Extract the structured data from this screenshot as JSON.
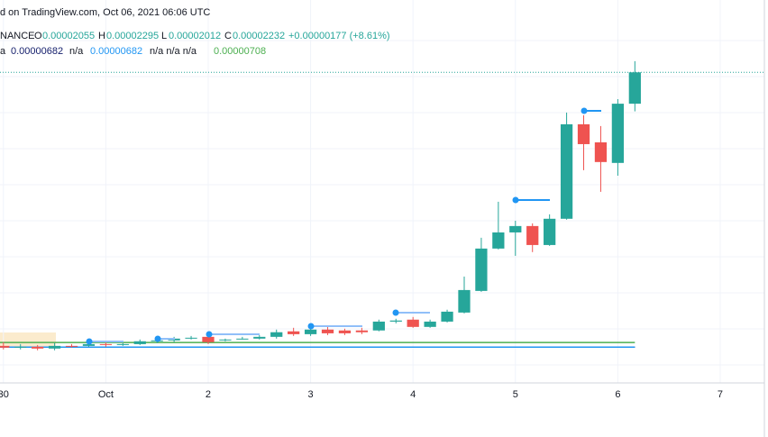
{
  "header": {
    "published": "d on TradingView.com, Oct 06, 2021 06:06 UTC",
    "symbol": "NANCE",
    "o_label": "O",
    "h_label": "H",
    "l_label": "L",
    "c_label": "C",
    "change": "+0.00000177 (+8.61%)",
    "ind_name": "a",
    "na_1": "n/a",
    "na_2": "n/a n/a n/a"
  },
  "chart_data": {
    "type": "candlestick",
    "categories": [
      "30",
      null,
      null,
      null,
      null,
      null,
      "Oct",
      null,
      null,
      null,
      null,
      null,
      "2",
      null,
      null,
      null,
      null,
      null,
      "3",
      null,
      null,
      null,
      null,
      null,
      "4",
      null,
      null,
      null,
      null,
      null,
      "5",
      null,
      null,
      null,
      null,
      null,
      "6",
      null
    ],
    "open": [
      6.89e-06,
      6.79e-06,
      6.84e-06,
      6.74e-06,
      6.89e-06,
      6.89e-06,
      6.99e-06,
      6.94e-06,
      6.99e-06,
      7.15e-06,
      7.2e-06,
      7.3e-06,
      7.4e-06,
      7.2e-06,
      7.25e-06,
      7.3e-06,
      7.4e-06,
      7.71e-06,
      7.55e-06,
      7.81e-06,
      7.76e-06,
      7.76e-06,
      7.76e-06,
      8.26e-06,
      8.37e-06,
      7.96e-06,
      8.26e-06,
      8.77e-06,
      9.99e-06,
      1.238e-05,
      1.329e-05,
      1.365e-05,
      1.258e-05,
      1.406e-05,
      1.939e-05,
      1.837e-05,
      1.721e-05,
      2.055e-05
    ],
    "high": [
      7.1e-06,
      6.99e-06,
      6.94e-06,
      7.05e-06,
      6.99e-06,
      7.1e-06,
      7.1e-06,
      7.05e-06,
      7.25e-06,
      7.3e-06,
      7.4e-06,
      7.45e-06,
      7.55e-06,
      7.3e-06,
      7.4e-06,
      7.5e-06,
      7.81e-06,
      7.91e-06,
      8.01e-06,
      7.96e-06,
      7.86e-06,
      7.91e-06,
      8.37e-06,
      8.42e-06,
      8.52e-06,
      8.37e-06,
      8.93e-06,
      1.08e-05,
      1.299e-05,
      1.502e-05,
      1.395e-05,
      1.38e-05,
      1.431e-05,
      2.005e-05,
      1.99e-05,
      1.929e-05,
      2.081e-05,
      2.295e-05
    ],
    "low": [
      6.69e-06,
      6.69e-06,
      6.64e-06,
      6.64e-06,
      6.79e-06,
      6.84e-06,
      6.84e-06,
      6.89e-06,
      6.94e-06,
      7.05e-06,
      7.1e-06,
      7.25e-06,
      6.99e-06,
      7.15e-06,
      7.25e-06,
      7.25e-06,
      7.3e-06,
      7.45e-06,
      7.45e-06,
      7.5e-06,
      7.5e-06,
      7.55e-06,
      7.71e-06,
      8.16e-06,
      7.91e-06,
      7.91e-06,
      8.21e-06,
      8.72e-06,
      9.94e-06,
      1.233e-05,
      1.197e-05,
      1.218e-05,
      1.253e-05,
      1.401e-05,
      1.68e-05,
      1.558e-05,
      1.649e-05,
      2.012e-05
    ],
    "close": [
      6.79e-06,
      6.84e-06,
      6.74e-06,
      6.89e-06,
      6.87e-06,
      6.99e-06,
      6.94e-06,
      6.99e-06,
      7.15e-06,
      7.2e-06,
      7.3e-06,
      7.35e-06,
      7.1e-06,
      7.25e-06,
      7.3e-06,
      7.4e-06,
      7.66e-06,
      7.55e-06,
      7.81e-06,
      7.6e-06,
      7.6e-06,
      7.66e-06,
      8.26e-06,
      8.32e-06,
      7.96e-06,
      8.26e-06,
      8.82e-06,
      1.004e-05,
      1.238e-05,
      1.329e-05,
      1.365e-05,
      1.258e-05,
      1.406e-05,
      1.939e-05,
      1.827e-05,
      1.726e-05,
      2.055e-05,
      2.232e-05
    ],
    "up_color": "#26a69a",
    "down_color": "#ef5350",
    "indicators": [
      {
        "value": 6.82e-06,
        "color": "#131d6b"
      },
      {
        "value": 6.82e-06,
        "color": "#2196f3"
      },
      {
        "value": 7.08e-06,
        "color": "#4caf50"
      }
    ],
    "xticks": [
      {
        "value": 0,
        "label": "30"
      },
      {
        "value": 6,
        "label": "Oct"
      },
      {
        "value": 12,
        "label": "2"
      },
      {
        "value": 18,
        "label": "3"
      },
      {
        "value": 24,
        "label": "4"
      },
      {
        "value": 30,
        "label": "5"
      },
      {
        "value": 36,
        "label": "6"
      },
      {
        "value": 42,
        "label": "7"
      }
    ],
    "xlim": [
      -0.2,
      44.8
    ],
    "ylim": [
      4.8e-06,
      2.64e-05
    ],
    "grid": true
  }
}
